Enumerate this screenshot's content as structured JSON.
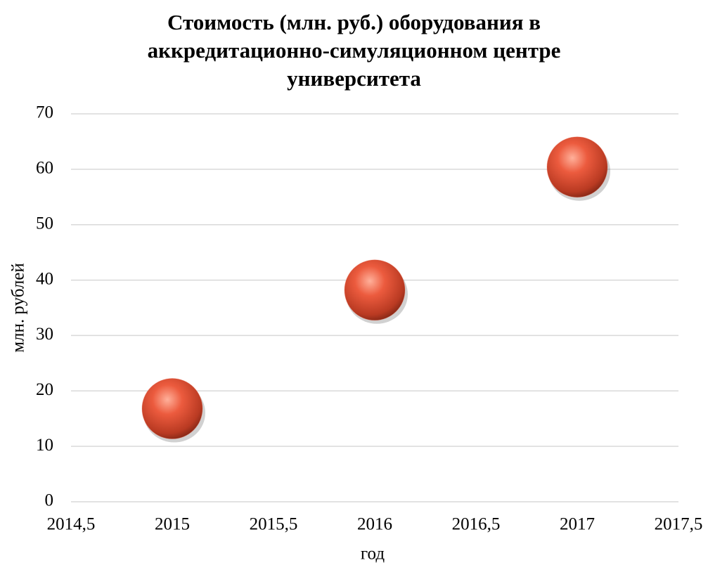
{
  "chart_data": {
    "type": "scatter",
    "title": "Стоимость (млн. руб.) оборудования в\nаккредитационно-симуляционном центре\nуниверситета",
    "x_label": "год",
    "y_label": "млн. рублей",
    "x": [
      2015,
      2016,
      2017
    ],
    "values": [
      16.8,
      38.2,
      60.4
    ],
    "color": "#e5553a",
    "xlim": [
      2014.5,
      2017.5
    ],
    "xticks": [
      {
        "value": 2014.5,
        "label": "2014,5"
      },
      2015,
      {
        "value": 2015.5,
        "label": "2015,5"
      },
      2016,
      {
        "value": 2016.5,
        "label": "2016,5"
      },
      2017,
      {
        "value": 2017.5,
        "label": "2017,5"
      }
    ],
    "ylim": [
      0,
      70
    ],
    "yticks": [
      0,
      10,
      20,
      30,
      40,
      50,
      60,
      70
    ],
    "grid": true
  }
}
